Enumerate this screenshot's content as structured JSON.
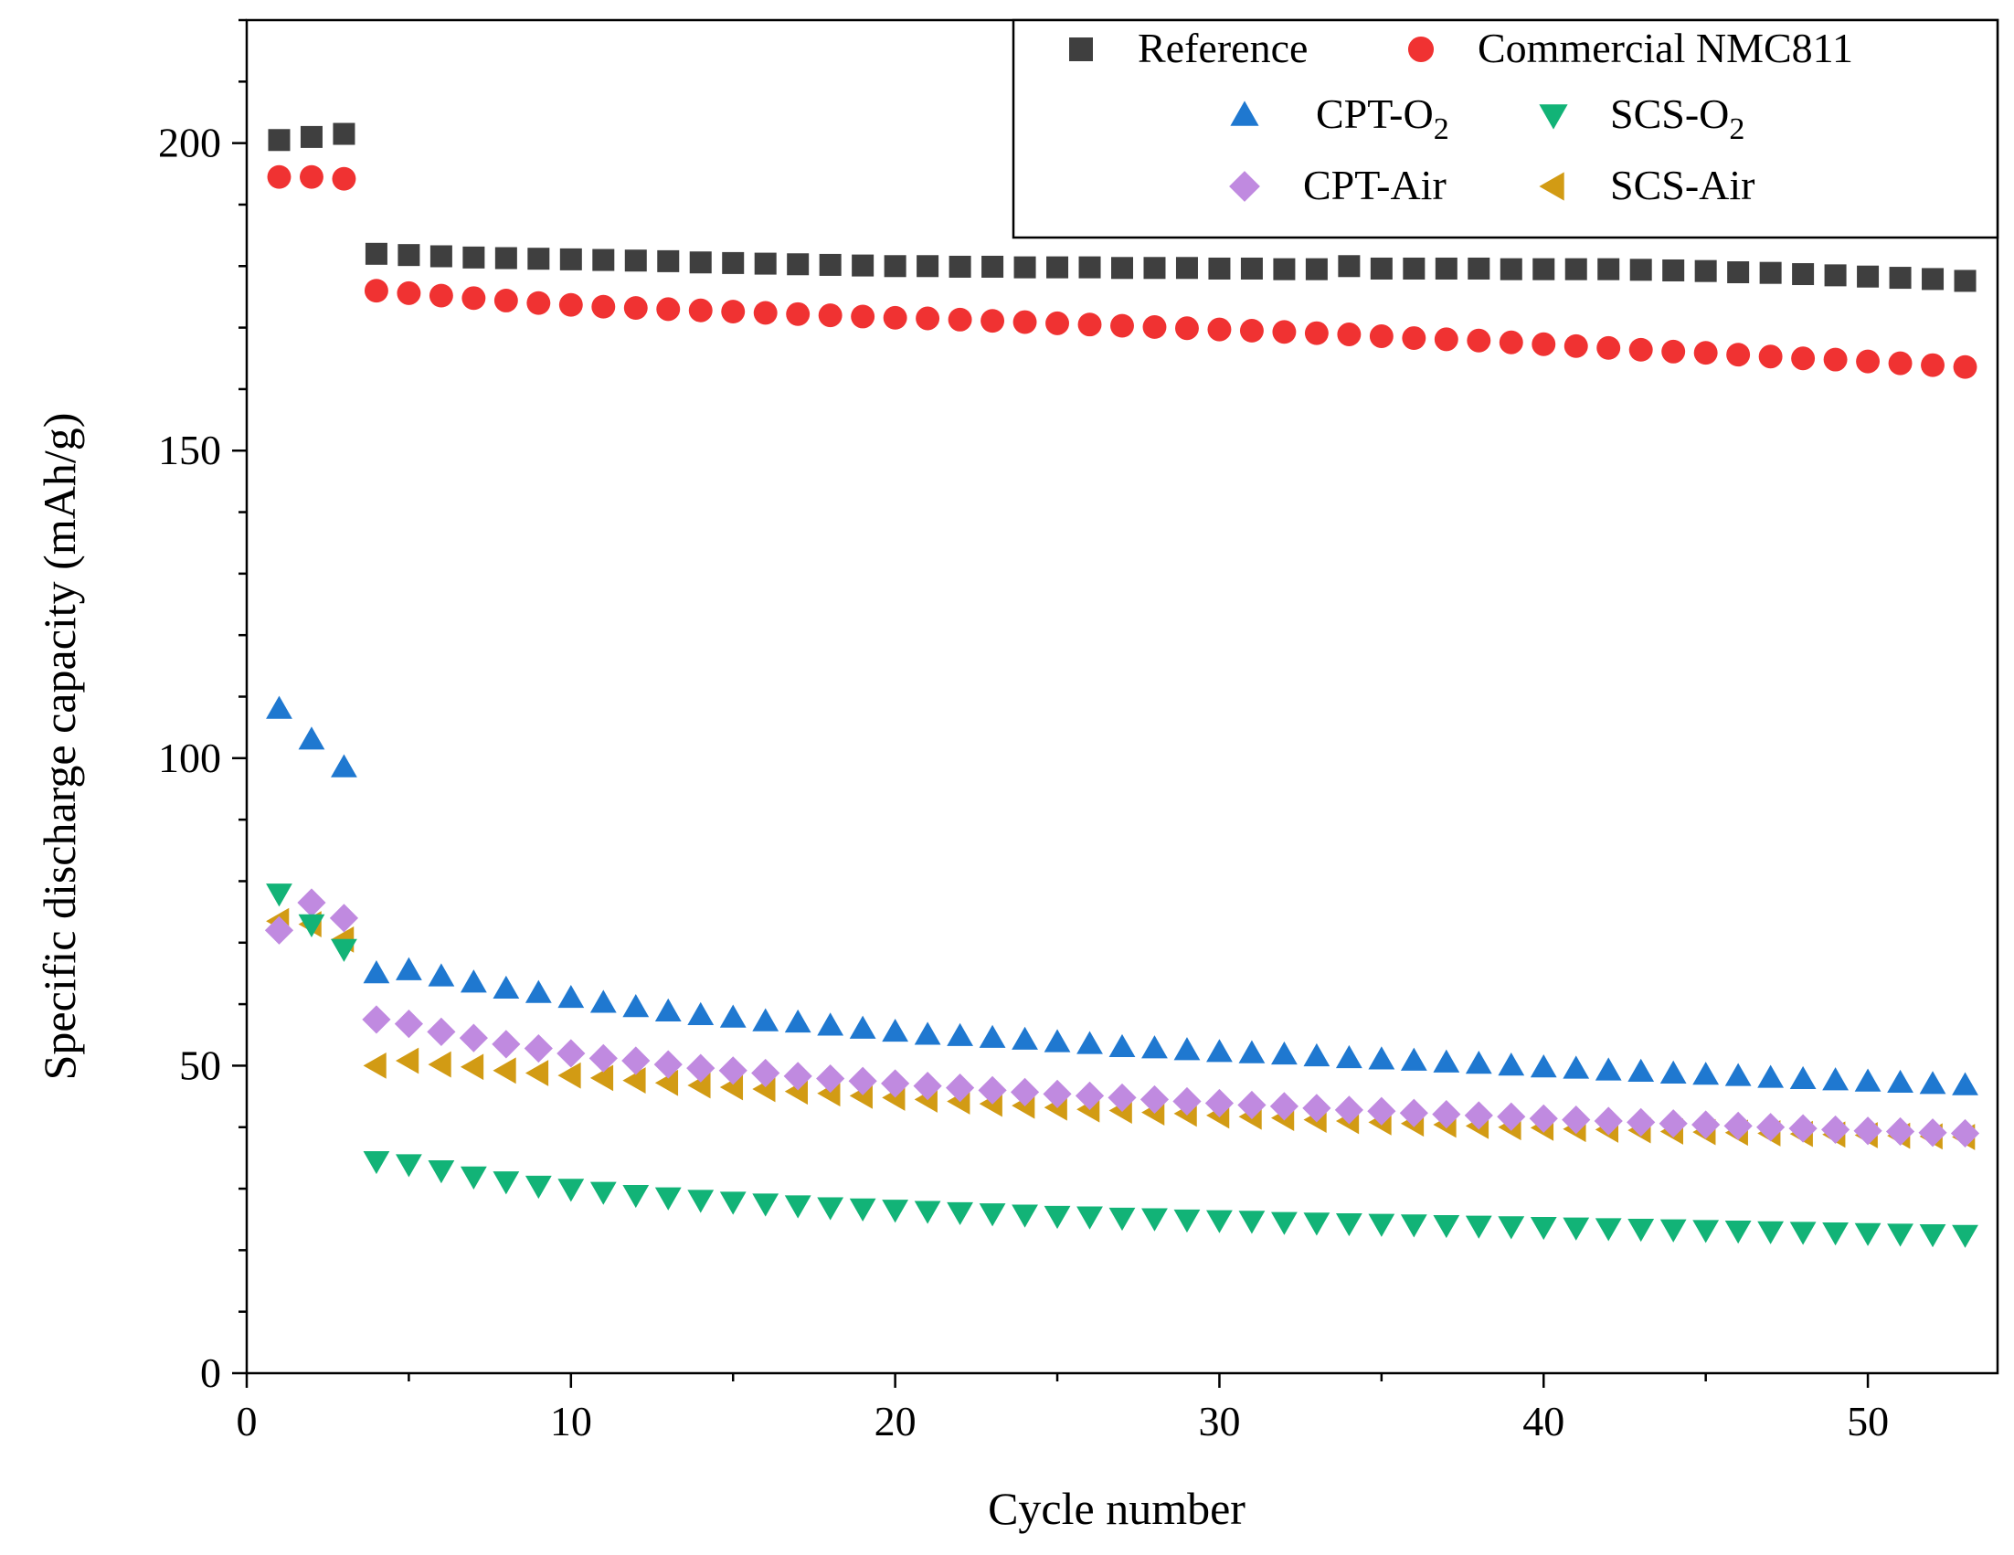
{
  "chart_data": {
    "type": "scatter",
    "xlabel": "Cycle number",
    "ylabel": "Specific discharge capacity (mAh/g)",
    "xlim": [
      0,
      54
    ],
    "ylim": [
      0,
      220
    ],
    "xticks": [
      0,
      10,
      20,
      30,
      40,
      50
    ],
    "yticks": [
      0,
      50,
      100,
      150,
      200
    ],
    "x_minor_step": 5,
    "y_minor_step": 10,
    "legend_position": "top-right",
    "series": [
      {
        "name": "Reference",
        "label_main": "Reference",
        "label_sub": "",
        "marker": "square",
        "color": "#3f3f3f",
        "x": [
          1,
          2,
          3,
          4,
          5,
          6,
          7,
          8,
          9,
          10,
          11,
          12,
          13,
          14,
          15,
          16,
          17,
          18,
          19,
          20,
          21,
          22,
          23,
          24,
          25,
          26,
          27,
          28,
          29,
          30,
          31,
          32,
          33,
          34,
          35,
          36,
          37,
          38,
          39,
          40,
          41,
          42,
          43,
          44,
          45,
          46,
          47,
          48,
          49,
          50,
          51,
          52,
          53
        ],
        "values": [
          200.5,
          201.0,
          201.5,
          182.0,
          181.8,
          181.6,
          181.4,
          181.3,
          181.2,
          181.1,
          181.0,
          180.9,
          180.8,
          180.6,
          180.5,
          180.4,
          180.3,
          180.2,
          180.1,
          180.0,
          180.0,
          179.9,
          179.9,
          179.8,
          179.8,
          179.8,
          179.7,
          179.7,
          179.7,
          179.6,
          179.6,
          179.5,
          179.5,
          180.0,
          179.6,
          179.6,
          179.6,
          179.6,
          179.5,
          179.5,
          179.5,
          179.5,
          179.4,
          179.3,
          179.2,
          179.0,
          178.9,
          178.7,
          178.5,
          178.3,
          178.1,
          177.9,
          177.6
        ]
      },
      {
        "name": "Commercial NMC811",
        "label_main": "Commercial NMC811",
        "label_sub": "",
        "marker": "circle",
        "color": "#f03232",
        "x": [
          1,
          2,
          3,
          4,
          5,
          6,
          7,
          8,
          9,
          10,
          11,
          12,
          13,
          14,
          15,
          16,
          17,
          18,
          19,
          20,
          21,
          22,
          23,
          24,
          25,
          26,
          27,
          28,
          29,
          30,
          31,
          32,
          33,
          34,
          35,
          36,
          37,
          38,
          39,
          40,
          41,
          42,
          43,
          44,
          45,
          46,
          47,
          48,
          49,
          50,
          51,
          52,
          53
        ],
        "values": [
          194.5,
          194.5,
          194.2,
          176.0,
          175.6,
          175.2,
          174.8,
          174.4,
          174.0,
          173.7,
          173.4,
          173.2,
          173.0,
          172.8,
          172.6,
          172.4,
          172.2,
          172.0,
          171.8,
          171.6,
          171.5,
          171.3,
          171.1,
          170.9,
          170.7,
          170.5,
          170.3,
          170.1,
          169.9,
          169.7,
          169.5,
          169.3,
          169.1,
          168.9,
          168.6,
          168.3,
          168.1,
          167.9,
          167.6,
          167.3,
          167.0,
          166.7,
          166.4,
          166.1,
          165.9,
          165.6,
          165.3,
          165.0,
          164.8,
          164.5,
          164.2,
          163.9,
          163.6
        ]
      },
      {
        "name": "CPT-O2",
        "label_main": "CPT-O",
        "label_sub": "2",
        "marker": "triangle-up",
        "color": "#1f78d0",
        "x": [
          1,
          2,
          3,
          4,
          5,
          6,
          7,
          8,
          9,
          10,
          11,
          12,
          13,
          14,
          15,
          16,
          17,
          18,
          19,
          20,
          21,
          22,
          23,
          24,
          25,
          26,
          27,
          28,
          29,
          30,
          31,
          32,
          33,
          34,
          35,
          36,
          37,
          38,
          39,
          40,
          41,
          42,
          43,
          44,
          45,
          46,
          47,
          48,
          49,
          50,
          51,
          52,
          53
        ],
        "values": [
          108.0,
          103.0,
          98.5,
          65.0,
          65.5,
          64.5,
          63.5,
          62.5,
          61.8,
          61.0,
          60.2,
          59.5,
          58.8,
          58.2,
          57.8,
          57.2,
          57.0,
          56.5,
          56.0,
          55.5,
          55.0,
          54.8,
          54.5,
          54.2,
          53.8,
          53.5,
          53.0,
          52.8,
          52.5,
          52.2,
          52.0,
          51.8,
          51.5,
          51.2,
          51.0,
          50.8,
          50.5,
          50.3,
          50.0,
          49.7,
          49.5,
          49.2,
          49.0,
          48.7,
          48.5,
          48.3,
          48.0,
          47.8,
          47.6,
          47.4,
          47.2,
          47.0,
          46.8
        ]
      },
      {
        "name": "SCS-O2",
        "label_main": "SCS-O",
        "label_sub": "2",
        "marker": "triangle-down",
        "color": "#12b377",
        "x": [
          1,
          2,
          3,
          4,
          5,
          6,
          7,
          8,
          9,
          10,
          11,
          12,
          13,
          14,
          15,
          16,
          17,
          18,
          19,
          20,
          21,
          22,
          23,
          24,
          25,
          26,
          27,
          28,
          29,
          30,
          31,
          32,
          33,
          34,
          35,
          36,
          37,
          38,
          39,
          40,
          41,
          42,
          43,
          44,
          45,
          46,
          47,
          48,
          49,
          50,
          51,
          52,
          53
        ],
        "values": [
          78.0,
          73.0,
          69.0,
          34.5,
          34.0,
          33.0,
          32.0,
          31.2,
          30.5,
          30.0,
          29.5,
          29.0,
          28.6,
          28.2,
          27.9,
          27.6,
          27.3,
          27.0,
          26.8,
          26.6,
          26.4,
          26.2,
          26.0,
          25.8,
          25.6,
          25.5,
          25.3,
          25.2,
          25.0,
          24.9,
          24.8,
          24.6,
          24.5,
          24.4,
          24.3,
          24.2,
          24.1,
          24.0,
          23.9,
          23.8,
          23.7,
          23.6,
          23.5,
          23.4,
          23.3,
          23.2,
          23.1,
          23.0,
          22.9,
          22.8,
          22.7,
          22.6,
          22.5
        ]
      },
      {
        "name": "CPT-Air",
        "label_main": "CPT-Air",
        "label_sub": "",
        "marker": "diamond",
        "color": "#c08ae0",
        "x": [
          1,
          2,
          3,
          4,
          5,
          6,
          7,
          8,
          9,
          10,
          11,
          12,
          13,
          14,
          15,
          16,
          17,
          18,
          19,
          20,
          21,
          22,
          23,
          24,
          25,
          26,
          27,
          28,
          29,
          30,
          31,
          32,
          33,
          34,
          35,
          36,
          37,
          38,
          39,
          40,
          41,
          42,
          43,
          44,
          45,
          46,
          47,
          48,
          49,
          50,
          51,
          52,
          53
        ],
        "values": [
          72.0,
          76.5,
          74.0,
          57.5,
          56.8,
          55.5,
          54.5,
          53.5,
          52.8,
          52.0,
          51.2,
          50.8,
          50.2,
          49.6,
          49.2,
          48.8,
          48.3,
          47.9,
          47.5,
          47.1,
          46.7,
          46.4,
          46.0,
          45.7,
          45.4,
          45.1,
          44.8,
          44.5,
          44.2,
          43.9,
          43.6,
          43.4,
          43.1,
          42.8,
          42.6,
          42.3,
          42.1,
          41.9,
          41.7,
          41.4,
          41.2,
          41.0,
          40.8,
          40.6,
          40.4,
          40.2,
          40.0,
          39.8,
          39.6,
          39.4,
          39.3,
          39.1,
          39.0
        ]
      },
      {
        "name": "SCS-Air",
        "label_main": "SCS-Air",
        "label_sub": "",
        "marker": "triangle-left",
        "color": "#d29b14",
        "x": [
          1,
          2,
          3,
          4,
          5,
          6,
          7,
          8,
          9,
          10,
          11,
          12,
          13,
          14,
          15,
          16,
          17,
          18,
          19,
          20,
          21,
          22,
          23,
          24,
          25,
          26,
          27,
          28,
          29,
          30,
          31,
          32,
          33,
          34,
          35,
          36,
          37,
          38,
          39,
          40,
          41,
          42,
          43,
          44,
          45,
          46,
          47,
          48,
          49,
          50,
          51,
          52,
          53
        ],
        "values": [
          73.5,
          73.0,
          70.5,
          50.0,
          50.8,
          50.2,
          49.8,
          49.2,
          48.8,
          48.4,
          48.0,
          47.6,
          47.2,
          46.8,
          46.5,
          46.2,
          45.8,
          45.5,
          45.1,
          44.8,
          44.5,
          44.2,
          43.8,
          43.5,
          43.2,
          42.9,
          42.7,
          42.4,
          42.2,
          41.9,
          41.7,
          41.5,
          41.2,
          41.0,
          40.8,
          40.6,
          40.4,
          40.2,
          40.0,
          39.9,
          39.7,
          39.6,
          39.5,
          39.3,
          39.2,
          39.1,
          39.0,
          38.9,
          38.8,
          38.7,
          38.6,
          38.5,
          38.4
        ]
      }
    ]
  }
}
